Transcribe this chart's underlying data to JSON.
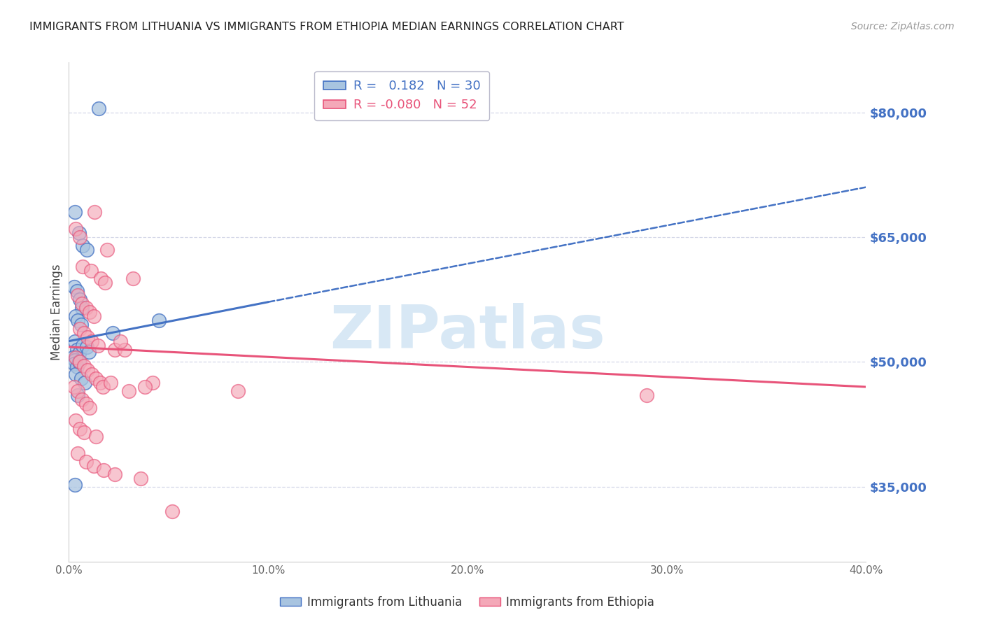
{
  "title": "IMMIGRANTS FROM LITHUANIA VS IMMIGRANTS FROM ETHIOPIA MEDIAN EARNINGS CORRELATION CHART",
  "source": "Source: ZipAtlas.com",
  "ylabel": "Median Earnings",
  "yticks": [
    35000,
    50000,
    65000,
    80000
  ],
  "ytick_labels": [
    "$35,000",
    "$50,000",
    "$65,000",
    "$80,000"
  ],
  "xmin": 0.0,
  "xmax": 40.0,
  "ymin": 26000,
  "ymax": 86000,
  "legend_line1": "R =   0.182   N = 30",
  "legend_line2": "R = -0.080   N = 52",
  "blue_color": "#A8C4E0",
  "pink_color": "#F4A8B8",
  "trendline_blue": "#4472C4",
  "trendline_pink": "#E8547A",
  "watermark_color": "#D8E8F5",
  "blue_scatter_x": [
    1.5,
    0.3,
    0.5,
    0.7,
    0.9,
    0.25,
    0.4,
    0.55,
    0.65,
    0.35,
    0.45,
    0.6,
    0.3,
    0.4,
    0.5,
    0.2,
    0.3,
    0.25,
    0.4,
    0.35,
    2.2,
    0.6,
    0.8,
    0.45,
    0.3,
    4.5,
    0.5,
    0.7,
    0.9,
    1.0
  ],
  "blue_scatter_y": [
    80500,
    68000,
    65500,
    64000,
    63500,
    59000,
    58500,
    57500,
    56500,
    55500,
    55000,
    54500,
    52500,
    51500,
    51000,
    50500,
    50200,
    49800,
    49400,
    48500,
    53500,
    48000,
    47500,
    46000,
    35200,
    55000,
    50000,
    52000,
    51800,
    51200
  ],
  "pink_scatter_x": [
    0.35,
    0.55,
    1.3,
    1.9,
    0.7,
    1.1,
    1.6,
    1.8,
    0.45,
    0.65,
    0.85,
    1.05,
    1.25,
    0.55,
    0.75,
    0.95,
    1.15,
    1.45,
    2.3,
    2.8,
    2.6,
    3.2,
    0.35,
    0.55,
    0.75,
    0.95,
    1.15,
    1.35,
    1.55,
    0.25,
    0.45,
    0.65,
    0.85,
    1.05,
    1.7,
    2.1,
    3.0,
    4.2,
    0.35,
    0.55,
    0.75,
    1.35,
    3.8,
    8.5,
    29.0,
    0.45,
    0.85,
    1.25,
    1.75,
    2.3,
    3.6,
    5.2
  ],
  "pink_scatter_y": [
    66000,
    65000,
    68000,
    63500,
    61500,
    61000,
    60000,
    59500,
    58000,
    57000,
    56500,
    56000,
    55500,
    54000,
    53500,
    53000,
    52500,
    52000,
    51500,
    51500,
    52500,
    60000,
    50500,
    50000,
    49500,
    49000,
    48500,
    48000,
    47500,
    47000,
    46500,
    45500,
    45000,
    44500,
    47000,
    47500,
    46500,
    47500,
    43000,
    42000,
    41500,
    41000,
    47000,
    46500,
    46000,
    39000,
    38000,
    37500,
    37000,
    36500,
    36000,
    32000
  ],
  "blue_trendline_x0": 0.0,
  "blue_trendline_y0": 52500,
  "blue_trendline_x1": 40.0,
  "blue_trendline_y1": 71000,
  "blue_solid_x1": 10.0,
  "blue_solid_y1": 57200,
  "pink_trendline_x0": 0.0,
  "pink_trendline_y0": 51800,
  "pink_trendline_x1": 40.0,
  "pink_trendline_y1": 47000,
  "grid_color": "#D5D8E8",
  "background_color": "#FFFFFF",
  "title_color": "#222222",
  "ytick_color": "#4472C4"
}
